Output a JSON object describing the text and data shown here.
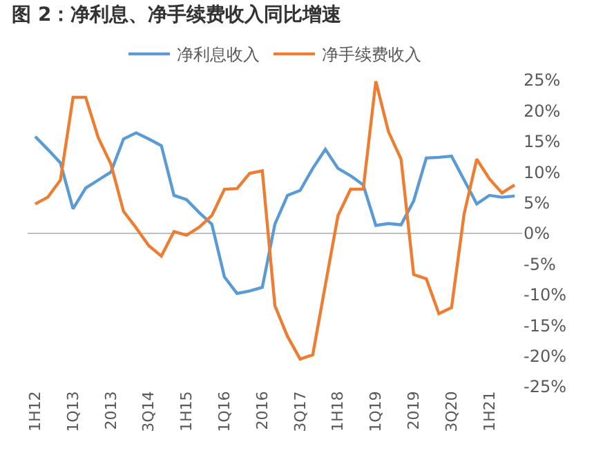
{
  "chart_data": {
    "type": "line",
    "title": "图 2：净利息、净手续费收入同比增速",
    "categories": [
      "1H12",
      null,
      null,
      "1Q13",
      null,
      null,
      "2013",
      null,
      null,
      "3Q14",
      null,
      null,
      "1H15",
      null,
      null,
      "1Q16",
      null,
      null,
      "2016",
      null,
      null,
      "3Q17",
      null,
      null,
      "1H18",
      null,
      null,
      "1Q19",
      null,
      null,
      "2019",
      null,
      null,
      "3Q20",
      null,
      null,
      "1H21",
      null,
      null
    ],
    "series": [
      {
        "name": "净利息收入",
        "color": "#5b9bd5",
        "values": [
          15.8,
          13.7,
          11.5,
          4.0,
          7.4,
          8.7,
          10.0,
          15.4,
          16.4,
          15.4,
          14.3,
          6.2,
          5.5,
          3.4,
          1.5,
          -7.1,
          -9.8,
          -9.4,
          -8.8,
          1.5,
          6.2,
          7.0,
          10.6,
          13.7,
          10.6,
          9.4,
          7.9,
          1.3,
          1.6,
          1.4,
          5.3,
          12.3,
          12.4,
          12.6,
          8.7,
          4.8,
          6.2,
          5.9,
          6.1
        ]
      },
      {
        "name": "净手续费收入",
        "color": "#ed7d31",
        "values": [
          4.8,
          5.9,
          8.7,
          22.2,
          22.2,
          15.6,
          11.3,
          3.6,
          0.9,
          -2.0,
          -3.7,
          0.3,
          -0.3,
          1.0,
          2.9,
          7.2,
          7.3,
          9.8,
          10.2,
          -11.8,
          -16.8,
          -20.5,
          -19.8,
          -8.4,
          2.9,
          7.2,
          7.2,
          24.8,
          16.6,
          12.1,
          -6.7,
          -7.4,
          -13.1,
          -12.1,
          3.2,
          12.1,
          8.9,
          6.6,
          7.9
        ]
      }
    ],
    "ylim": [
      -25,
      25
    ],
    "yticks": [
      {
        "value": 25,
        "label": "25%"
      },
      {
        "value": 20,
        "label": "20%"
      },
      {
        "value": 15,
        "label": "15%"
      },
      {
        "value": 10,
        "label": "10%"
      },
      {
        "value": 5,
        "label": "5%"
      },
      {
        "value": 0,
        "label": "0%"
      },
      {
        "value": -5,
        "label": "-5%"
      },
      {
        "value": -10,
        "label": "-10%"
      },
      {
        "value": -15,
        "label": "-15%"
      },
      {
        "value": -20,
        "label": "-20%"
      },
      {
        "value": -25,
        "label": "-25%"
      }
    ],
    "ref_lines": [
      {
        "axis": "y",
        "value": 0,
        "color": "#bfbfbf"
      }
    ],
    "grid": false,
    "legend": "top",
    "marker": "none",
    "line_style": "solid"
  }
}
